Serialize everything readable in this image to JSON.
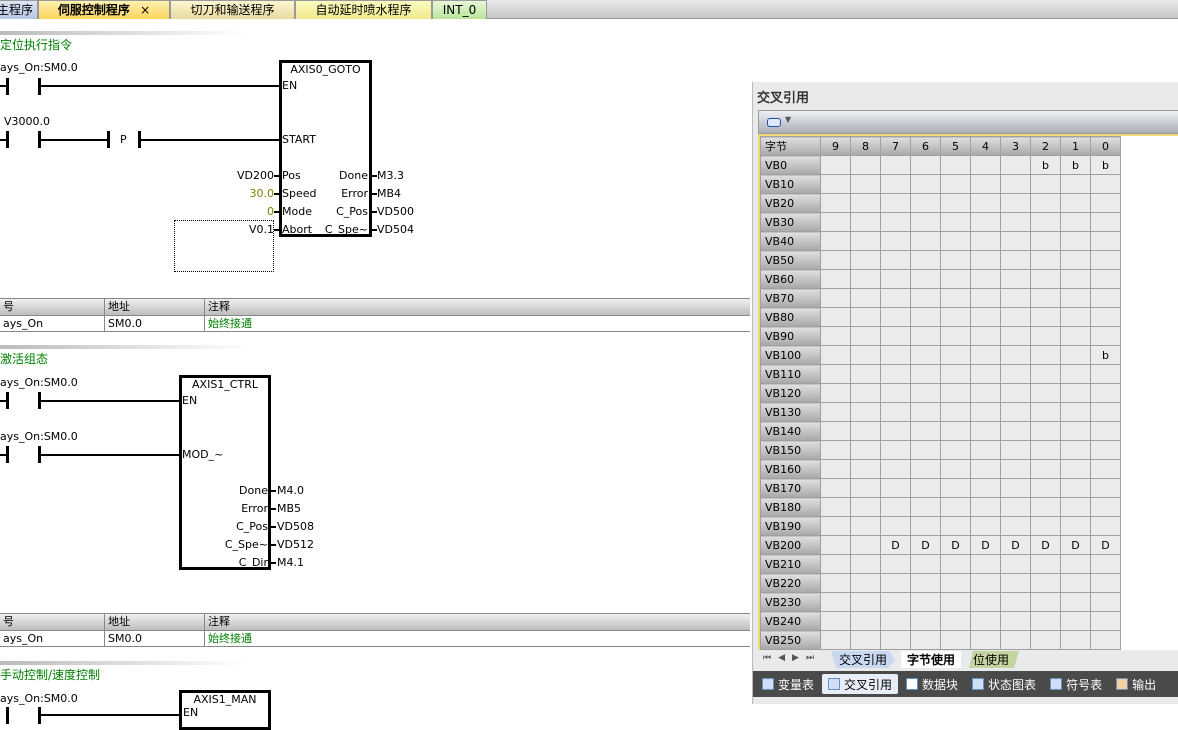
{
  "tabs": [
    {
      "label": "主程序"
    },
    {
      "label": "伺服控制程序",
      "active": true
    },
    {
      "label": "切刀和输送程序"
    },
    {
      "label": "自动延时喷水程序"
    },
    {
      "label": "INT_0"
    }
  ],
  "networks": [
    {
      "title": "定位执行指令",
      "contact1": "ays_On:SM0.0",
      "contact2": "V3000.0",
      "p_label": "P",
      "block": "AXIS0_GOTO",
      "in_pins": [
        {
          "name": "EN"
        },
        {
          "name": "START"
        },
        {
          "name": "Pos",
          "value": "VD200"
        },
        {
          "name": "Speed",
          "value": "30.0"
        },
        {
          "name": "Mode",
          "value": "0"
        },
        {
          "name": "Abort",
          "value": "V0.1"
        }
      ],
      "out_pins": [
        {
          "name": "Done",
          "value": "M3.3"
        },
        {
          "name": "Error",
          "value": "MB4"
        },
        {
          "name": "C_Pos",
          "value": "VD500"
        },
        {
          "name": "C_Spe~",
          "value": "VD504"
        }
      ]
    },
    {
      "title": "激活组态",
      "contact1": "ays_On:SM0.0",
      "contact2": "ays_On:SM0.0",
      "block": "AXIS1_CTRL",
      "in_pins": [
        {
          "name": "EN"
        },
        {
          "name": "MOD_~"
        }
      ],
      "out_pins": [
        {
          "name": "Done",
          "value": "M4.0"
        },
        {
          "name": "Error",
          "value": "MB5"
        },
        {
          "name": "C_Pos",
          "value": "VD508"
        },
        {
          "name": "C_Spe~",
          "value": "VD512"
        },
        {
          "name": "C_Dir",
          "value": "M4.1"
        }
      ]
    },
    {
      "title": "手动控制/速度控制",
      "contact1": "ays_On:SM0.0",
      "block": "AXIS1_MAN",
      "in_pins": [
        {
          "name": "EN"
        }
      ]
    }
  ],
  "symbol_table": {
    "headers": [
      "号",
      "地址",
      "注释"
    ],
    "row": [
      "ays_On",
      "SM0.0",
      "始终接通"
    ]
  },
  "panel": {
    "title": "交叉引用",
    "grid_header": [
      "字节",
      "9",
      "8",
      "7",
      "6",
      "5",
      "4",
      "3",
      "2",
      "1",
      "0"
    ],
    "rows": [
      {
        "label": "VB0",
        "cells": [
          "",
          "",
          "",
          "",
          "",
          "",
          "",
          "b",
          "b",
          "b"
        ]
      },
      {
        "label": "VB10",
        "cells": []
      },
      {
        "label": "VB20",
        "cells": []
      },
      {
        "label": "VB30",
        "cells": []
      },
      {
        "label": "VB40",
        "cells": []
      },
      {
        "label": "VB50",
        "cells": []
      },
      {
        "label": "VB60",
        "cells": []
      },
      {
        "label": "VB70",
        "cells": []
      },
      {
        "label": "VB80",
        "cells": []
      },
      {
        "label": "VB90",
        "cells": []
      },
      {
        "label": "VB100",
        "cells": [
          "",
          "",
          "",
          "",
          "",
          "",
          "",
          "",
          "",
          "b"
        ]
      },
      {
        "label": "VB110",
        "cells": []
      },
      {
        "label": "VB120",
        "cells": []
      },
      {
        "label": "VB130",
        "cells": []
      },
      {
        "label": "VB140",
        "cells": []
      },
      {
        "label": "VB150",
        "cells": []
      },
      {
        "label": "VB160",
        "cells": []
      },
      {
        "label": "VB170",
        "cells": []
      },
      {
        "label": "VB180",
        "cells": []
      },
      {
        "label": "VB190",
        "cells": []
      },
      {
        "label": "VB200",
        "cells": [
          "",
          "",
          "D",
          "D",
          "D",
          "D",
          "D",
          "D",
          "D",
          "D"
        ]
      },
      {
        "label": "VB210",
        "cells": []
      },
      {
        "label": "VB220",
        "cells": []
      },
      {
        "label": "VB230",
        "cells": []
      },
      {
        "label": "VB240",
        "cells": []
      },
      {
        "label": "VB250",
        "cells": []
      }
    ],
    "sheet_tabs": [
      {
        "label": "交叉引用"
      },
      {
        "label": "字节使用",
        "active": true
      },
      {
        "label": "位使用"
      }
    ],
    "bottom_tabs": [
      {
        "label": "变量表"
      },
      {
        "label": "交叉引用",
        "active": true
      },
      {
        "label": "数据块"
      },
      {
        "label": "状态图表"
      },
      {
        "label": "符号表"
      },
      {
        "label": "输出"
      }
    ]
  },
  "colors": {
    "comment_green": "#008000",
    "constant_olive": "#808000",
    "active_tab": "#fde07a"
  }
}
